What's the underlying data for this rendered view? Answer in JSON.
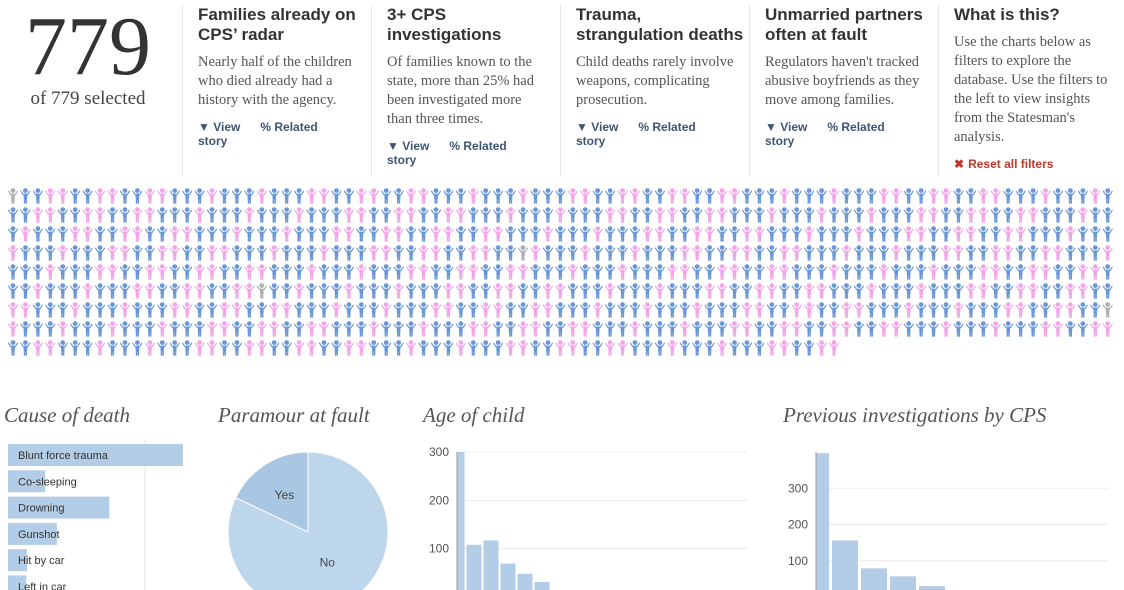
{
  "header": {
    "count": 779,
    "selected_text": "of 779 selected"
  },
  "stories": [
    {
      "title": "Families already on CPS’ radar",
      "body": "Nearly half of the children who died already had a history with the agency.",
      "view": "View",
      "related": "Related story"
    },
    {
      "title": "3+ CPS investigations",
      "body": "Of families known to the state, more than 25% had been investigated more than three times.",
      "view": "View",
      "related": "Related story"
    },
    {
      "title": "Trauma, strangulation deaths",
      "body": "Child deaths rarely involve weapons, complicating prosecution.",
      "view": "View",
      "related": "Related story"
    },
    {
      "title": "Unmarried partners often at fault",
      "body": "Regulators haven't tracked abusive boyfriends as they move among families.",
      "view": "View",
      "related": "Related story"
    }
  ],
  "about": {
    "title": "What is this?",
    "body": "Use the charts below as filters to explore the database. Use the filters to the left to view insights from the Statesman's analysis.",
    "reset": "Reset all filters"
  },
  "chart_data": [
    {
      "type": "hbar",
      "title": "Cause of death",
      "categories": [
        "Blunt force trauma",
        "Co-sleeping",
        "Drowning",
        "Gunshot",
        "Hit by car",
        "Left in car"
      ],
      "values": [
        240,
        51,
        139,
        67,
        26,
        25
      ],
      "color": "#b3cde6",
      "xlim": [
        0,
        240
      ]
    },
    {
      "type": "pie",
      "title": "Paramour at fault",
      "categories": [
        "Yes",
        "No"
      ],
      "values": [
        140,
        639
      ],
      "colors": [
        "#a9c6e3",
        "#bed6ec"
      ]
    },
    {
      "type": "bar",
      "title": "Age of child",
      "categories": [
        null,
        null,
        null,
        null,
        null,
        null
      ],
      "values": [
        300,
        108,
        117,
        69,
        48,
        31
      ],
      "color": "#b3cde6",
      "ylim": [
        0,
        300
      ],
      "yticks": [
        100,
        200,
        300
      ],
      "grid": true
    },
    {
      "type": "bar",
      "title": "Previous investigations by CPS",
      "categories": [
        null,
        null,
        null,
        null,
        null
      ],
      "values": [
        397,
        156,
        79,
        57,
        30
      ],
      "color": "#b3cde6",
      "ylim": [
        0,
        400
      ],
      "yticks": [
        100,
        200,
        300
      ],
      "grid": true
    }
  ]
}
